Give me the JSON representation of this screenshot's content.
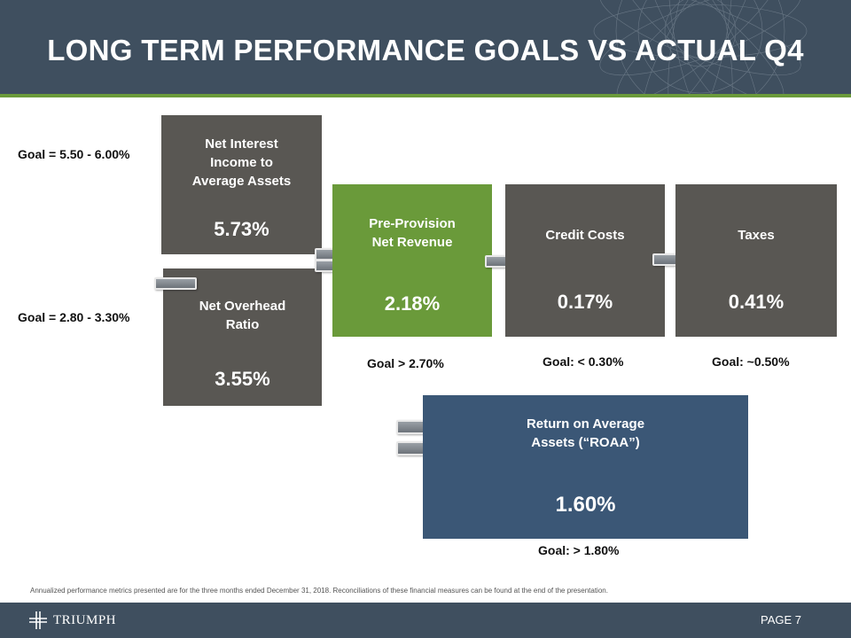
{
  "title": "LONG TERM PERFORMANCE GOALS VS ACTUAL Q4",
  "boxes": {
    "net_interest": {
      "label_lines": [
        "Net Interest",
        "Income to",
        "Average Assets"
      ],
      "value": "5.73%",
      "goal": "Goal = 5.50 - 6.00%"
    },
    "net_overhead": {
      "label_lines": [
        "Net Overhead",
        "Ratio"
      ],
      "value": "3.55%",
      "goal": "Goal = 2.80 - 3.30%"
    },
    "ppnr": {
      "label_lines": [
        "Pre-Provision",
        "Net Revenue"
      ],
      "value": "2.18%",
      "goal": "Goal > 2.70%"
    },
    "credit_costs": {
      "label": "Credit Costs",
      "value": "0.17%",
      "goal": "Goal: < 0.30%"
    },
    "taxes": {
      "label": "Taxes",
      "value": "0.41%",
      "goal": "Goal: ~0.50%"
    },
    "roaa": {
      "label_lines": [
        "Return on Average",
        "Assets (“ROAA”)"
      ],
      "value": "1.60%",
      "goal": "Goal: > 1.80%"
    }
  },
  "footnote": "Annualized performance metrics presented are for the three months ended December 31, 2018. Reconciliations of these financial measures can be found at the end of the presentation.",
  "footer": {
    "logo_text": "TRIUMPH",
    "page": "PAGE 7"
  },
  "colors": {
    "header": "#3f4f5f",
    "gray_box": "#595753",
    "green_box": "#6a9a3a",
    "blue_box": "#3b5776"
  }
}
